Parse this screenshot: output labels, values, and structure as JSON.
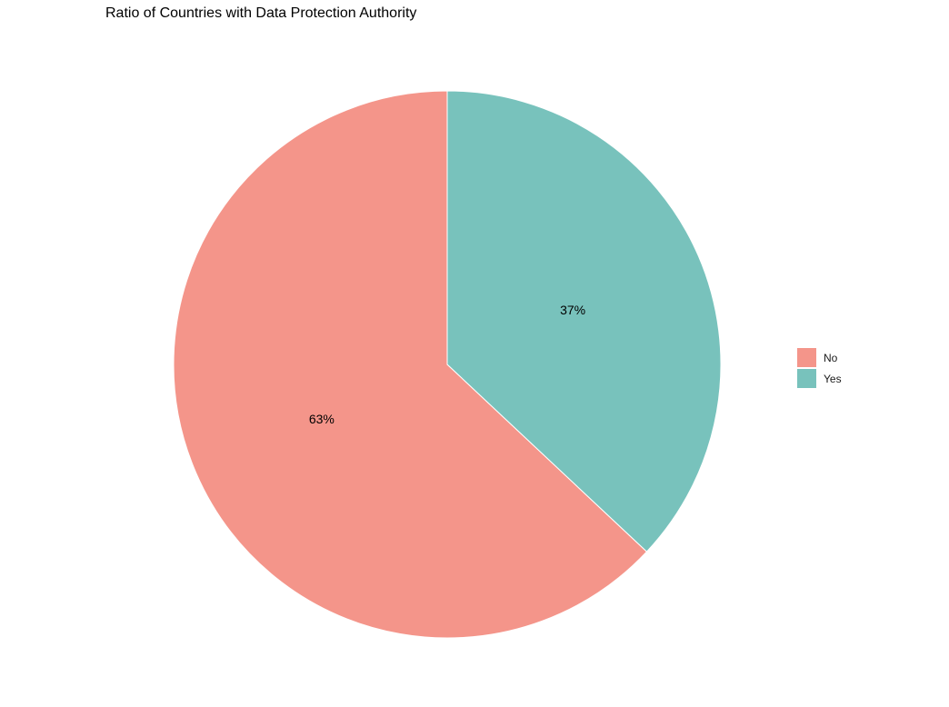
{
  "chart_data": {
    "type": "pie",
    "title": "Ratio of Countries with Data Protection Authority",
    "categories": [
      "No",
      "Yes"
    ],
    "values": [
      63,
      37
    ],
    "labels": [
      "63%",
      "37%"
    ],
    "colors": [
      "#F4958A",
      "#78C2BC"
    ],
    "legend": {
      "position": "right",
      "entries": [
        "No",
        "Yes"
      ]
    }
  }
}
